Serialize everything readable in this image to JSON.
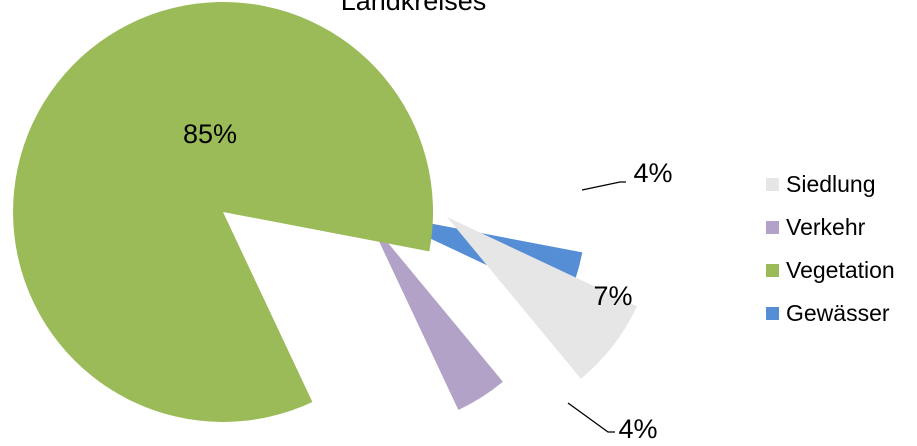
{
  "chart_data": {
    "type": "pie",
    "title": "Landkreises",
    "categories": [
      "Siedlung",
      "Verkehr",
      "Vegetation",
      "Gewässer"
    ],
    "values": [
      7,
      4,
      85,
      4
    ],
    "value_labels": [
      "7%",
      "4%",
      "85%",
      "4%"
    ],
    "colors": [
      "#e6e6e6",
      "#b3a2c7",
      "#9bbb59",
      "#558ed5"
    ],
    "legend_position": "right",
    "exploded": true
  }
}
